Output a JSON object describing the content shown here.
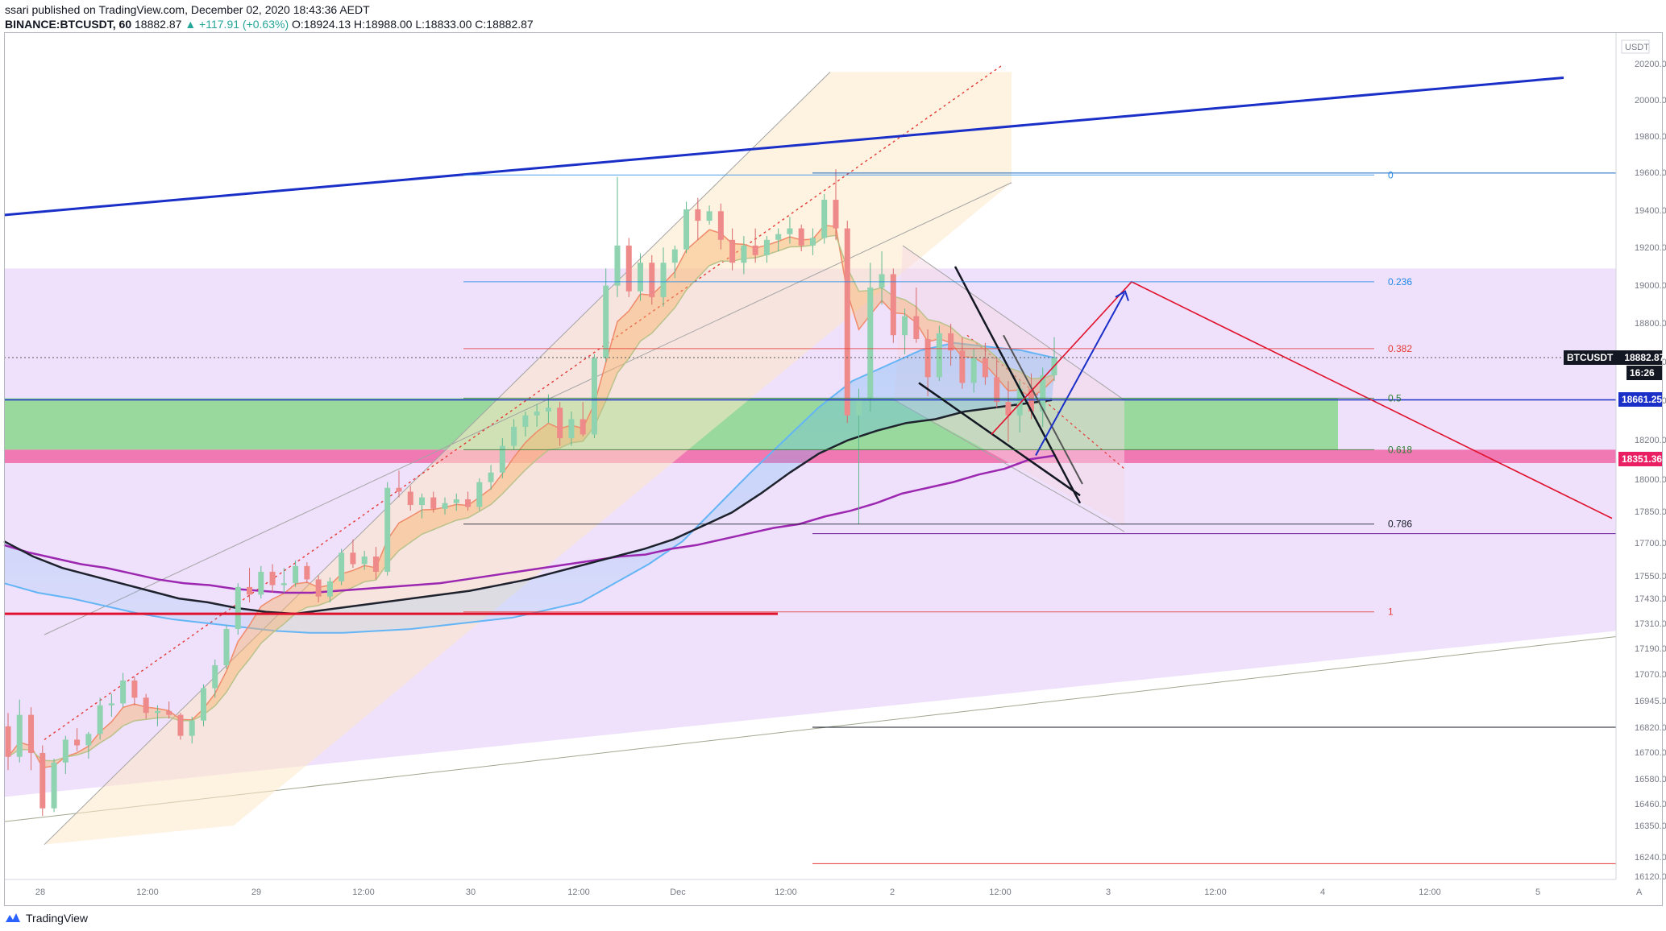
{
  "header": {
    "line1": "ssari published on TradingView.com, December 02, 2020 18:43:36 AEDT",
    "symbol": "BINANCE:BTCUSDT, 60",
    "last": "18882.87",
    "change": "▲ +117.91 (+0.63%)",
    "ohlc": "O:18924.13 H:18988.00 L:18833.00 C:18882.87"
  },
  "footer": {
    "brand": "TradingView"
  },
  "axis": {
    "currency": "USDT",
    "scale_mode": "A"
  },
  "colors": {
    "up": "#26a69a",
    "down": "#ef5350",
    "blue_trend": "#1a2fc8",
    "red_level": "#e0112d",
    "green_zone": "#7cd67e",
    "pink_zone": "#f0569b",
    "purple_zone": "#e8d5f8",
    "ma_purple": "#9c27b0",
    "ma_black": "#1e222d",
    "ma_cloud_blue": "#64b5f6",
    "ma_cloud_orange": "#f4a261"
  },
  "chart_data": {
    "type": "candlestick",
    "title": "BINANCE:BTCUSDT, 60",
    "xlabel": "",
    "ylabel": "",
    "ylim": [
      16120,
      20400
    ],
    "grid": false,
    "x_ticks": [
      "28",
      "12:00",
      "29",
      "12:00",
      "30",
      "12:00",
      "Dec",
      "12:00",
      "2",
      "12:00",
      "3",
      "12:00",
      "4",
      "12:00",
      "5"
    ],
    "y_ticks": [
      20200,
      20000,
      19800,
      19600,
      19400,
      19200,
      19000,
      18800,
      18600,
      18400,
      18200,
      18000,
      17850,
      17700,
      17550,
      17430,
      17310,
      17190,
      17070,
      16945,
      16820,
      16700,
      16580,
      16460,
      16350,
      16240,
      16120
    ],
    "price_labels": [
      {
        "name": "BTCUSDT",
        "value": "18882.87",
        "countdown": "16:26",
        "color": "#131722"
      },
      {
        "name": "",
        "value": "18661.25",
        "color": "#1a2fc8"
      },
      {
        "name": "",
        "value": "18351.36",
        "color": "#e91e63"
      }
    ],
    "fib_levels": [
      {
        "ratio": "0",
        "price": 19840
      },
      {
        "ratio": "0.236",
        "price": 19280
      },
      {
        "ratio": "0.382",
        "price": 18930
      },
      {
        "ratio": "0.5",
        "price": 18670
      },
      {
        "ratio": "0.618",
        "price": 18400
      },
      {
        "ratio": "0.786",
        "price": 18010
      },
      {
        "ratio": "1",
        "price": 17550
      }
    ],
    "horizontal_levels": [
      18882.87,
      18661.25,
      18351.36,
      17540,
      16945,
      16230
    ],
    "series": [
      {
        "name": "",
        "candles": [
          [
            16950,
            17020,
            16720,
            16790
          ],
          [
            16790,
            17090,
            16760,
            17010
          ],
          [
            17010,
            17050,
            16720,
            16810
          ],
          [
            16810,
            16850,
            16480,
            16520
          ],
          [
            16520,
            16780,
            16500,
            16760
          ],
          [
            16760,
            16900,
            16700,
            16880
          ],
          [
            16880,
            16940,
            16820,
            16850
          ],
          [
            16850,
            16920,
            16780,
            16910
          ],
          [
            16910,
            17100,
            16880,
            17060
          ],
          [
            17060,
            17120,
            17000,
            17070
          ],
          [
            17070,
            17230,
            17050,
            17190
          ],
          [
            17190,
            17210,
            17060,
            17100
          ],
          [
            17100,
            17120,
            16990,
            17020
          ],
          [
            17020,
            17060,
            16950,
            17030
          ],
          [
            17030,
            17080,
            16990,
            17010
          ],
          [
            17010,
            17020,
            16880,
            16900
          ],
          [
            16900,
            17000,
            16860,
            16980
          ],
          [
            16980,
            17170,
            16950,
            17150
          ],
          [
            17150,
            17300,
            17100,
            17270
          ],
          [
            17270,
            17480,
            17250,
            17460
          ],
          [
            17460,
            17700,
            17430,
            17680
          ],
          [
            17680,
            17780,
            17600,
            17640
          ],
          [
            17640,
            17790,
            17620,
            17760
          ],
          [
            17760,
            17800,
            17650,
            17690
          ],
          [
            17690,
            17780,
            17650,
            17700
          ],
          [
            17700,
            17820,
            17680,
            17790
          ],
          [
            17790,
            17810,
            17700,
            17720
          ],
          [
            17720,
            17740,
            17600,
            17630
          ],
          [
            17630,
            17730,
            17600,
            17710
          ],
          [
            17710,
            17880,
            17690,
            17860
          ],
          [
            17860,
            17930,
            17780,
            17800
          ],
          [
            17800,
            17870,
            17770,
            17840
          ],
          [
            17840,
            17890,
            17720,
            17760
          ],
          [
            17760,
            18230,
            17740,
            18200
          ],
          [
            18200,
            18290,
            18150,
            18180
          ],
          [
            18180,
            18210,
            18080,
            18110
          ],
          [
            18110,
            18170,
            18040,
            18150
          ],
          [
            18150,
            18180,
            18070,
            18090
          ],
          [
            18090,
            18150,
            18060,
            18120
          ],
          [
            18120,
            18170,
            18080,
            18140
          ],
          [
            18140,
            18180,
            18080,
            18100
          ],
          [
            18100,
            18250,
            18080,
            18230
          ],
          [
            18230,
            18320,
            18190,
            18280
          ],
          [
            18280,
            18460,
            18250,
            18420
          ],
          [
            18420,
            18560,
            18400,
            18520
          ],
          [
            18520,
            18600,
            18470,
            18580
          ],
          [
            18580,
            18640,
            18520,
            18600
          ],
          [
            18600,
            18690,
            18540,
            18620
          ],
          [
            18620,
            18650,
            18420,
            18460
          ],
          [
            18460,
            18600,
            18420,
            18560
          ],
          [
            18560,
            18650,
            18470,
            18480
          ],
          [
            18480,
            18900,
            18460,
            18880
          ],
          [
            18880,
            19350,
            18860,
            19260
          ],
          [
            19260,
            19830,
            19200,
            19470
          ],
          [
            19470,
            19510,
            19200,
            19230
          ],
          [
            19230,
            19430,
            19180,
            19380
          ],
          [
            19380,
            19420,
            19160,
            19200
          ],
          [
            19200,
            19460,
            19150,
            19380
          ],
          [
            19380,
            19470,
            19300,
            19450
          ],
          [
            19450,
            19700,
            19430,
            19660
          ],
          [
            19660,
            19720,
            19500,
            19600
          ],
          [
            19600,
            19680,
            19580,
            19650
          ],
          [
            19650,
            19690,
            19450,
            19500
          ],
          [
            19500,
            19560,
            19340,
            19380
          ],
          [
            19380,
            19520,
            19320,
            19470
          ],
          [
            19470,
            19560,
            19380,
            19420
          ],
          [
            19420,
            19520,
            19380,
            19500
          ],
          [
            19500,
            19560,
            19440,
            19530
          ],
          [
            19530,
            19620,
            19480,
            19560
          ],
          [
            19560,
            19580,
            19440,
            19470
          ],
          [
            19470,
            19560,
            19420,
            19510
          ],
          [
            19510,
            19740,
            19480,
            19710
          ],
          [
            19710,
            19870,
            19500,
            19560
          ],
          [
            19560,
            19600,
            18540,
            18580
          ],
          [
            18580,
            18720,
            18010,
            18670
          ],
          [
            18670,
            19380,
            18600,
            19250
          ],
          [
            19250,
            19440,
            19160,
            19320
          ],
          [
            19320,
            19350,
            18960,
            19000
          ],
          [
            19000,
            19140,
            18900,
            19100
          ],
          [
            19100,
            19250,
            18960,
            18980
          ],
          [
            18980,
            19030,
            18680,
            18780
          ],
          [
            18780,
            19050,
            18760,
            19010
          ],
          [
            19010,
            19060,
            18840,
            18920
          ],
          [
            18920,
            18990,
            18720,
            18750
          ],
          [
            18750,
            18930,
            18700,
            18880
          ],
          [
            18880,
            18960,
            18740,
            18780
          ],
          [
            18780,
            18880,
            18620,
            18650
          ],
          [
            18650,
            18760,
            18440,
            18580
          ],
          [
            18580,
            18760,
            18490,
            18720
          ],
          [
            18720,
            18800,
            18560,
            18600
          ],
          [
            18600,
            18830,
            18520,
            18790
          ],
          [
            18790,
            18990,
            18760,
            18880
          ]
        ]
      },
      {
        "name": "",
        "type": "line",
        "values": [
          17900,
          17860,
          17830,
          17800,
          17780,
          17750,
          17720,
          17700,
          17690,
          17670,
          17660,
          17650,
          17650,
          17660,
          17670,
          17680,
          17690,
          17700,
          17720,
          17740,
          17760,
          17780,
          17800,
          17820,
          17840,
          17850,
          17880,
          17900,
          17930,
          17960,
          17990,
          18010,
          18050,
          18080,
          18120,
          18170,
          18200,
          18230,
          18270,
          18300,
          18350,
          18370
        ]
      },
      {
        "name": "",
        "type": "line",
        "values": [
          17920,
          17840,
          17780,
          17740,
          17700,
          17660,
          17620,
          17600,
          17570,
          17550,
          17540,
          17560,
          17580,
          17600,
          17620,
          17640,
          17660,
          17690,
          17720,
          17760,
          17800,
          17840,
          17880,
          17930,
          18000,
          18070,
          18170,
          18280,
          18380,
          18450,
          18500,
          18540,
          18560,
          18600,
          18620,
          18640,
          18660
        ]
      },
      {
        "name": "",
        "type": "line",
        "values": [
          17700,
          17650,
          17620,
          17580,
          17540,
          17510,
          17490,
          17470,
          17450,
          17440,
          17440,
          17450,
          17460,
          17480,
          17500,
          17520,
          17560,
          17600,
          17700,
          17800,
          17920,
          18100,
          18280,
          18450,
          18620,
          18760,
          18840,
          18920,
          18960,
          18940,
          18920,
          18880
        ]
      }
    ]
  }
}
